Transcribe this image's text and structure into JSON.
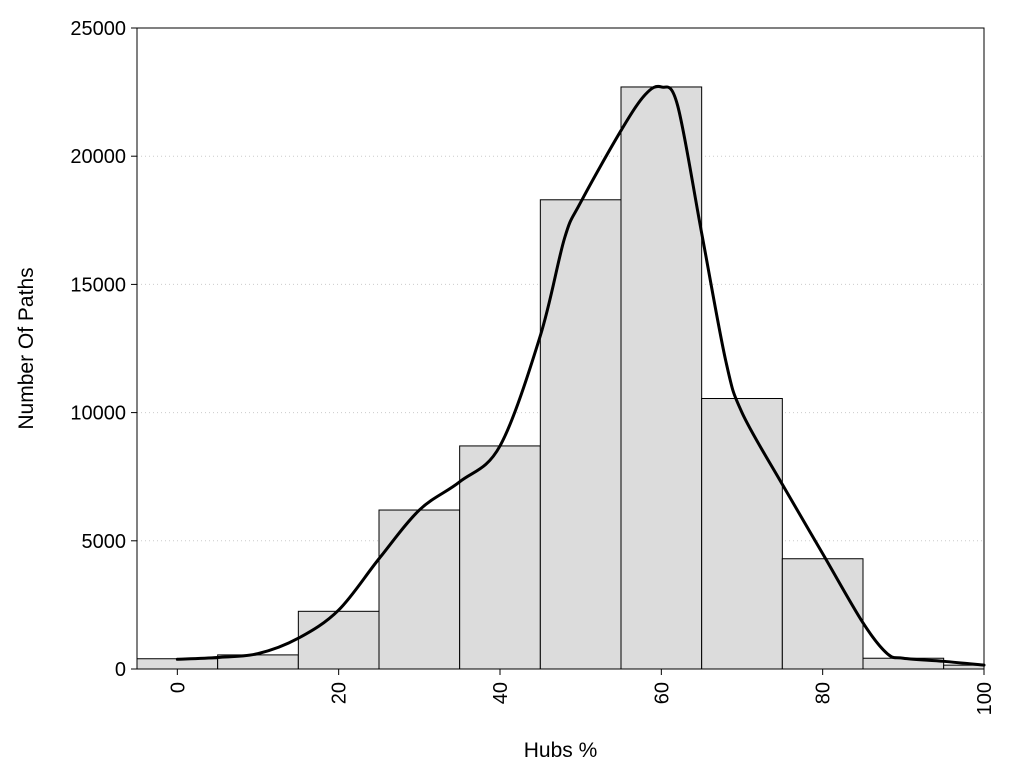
{
  "chart_data": {
    "type": "bar",
    "subtype": "histogram-with-density-curve",
    "title": "",
    "xlabel": "Hubs %",
    "ylabel": "Number Of Paths",
    "xlim": [
      -5,
      100
    ],
    "ylim": [
      0,
      25000
    ],
    "x_ticks": [
      0,
      20,
      40,
      60,
      80,
      100
    ],
    "x_tick_labels": [
      "0",
      "20",
      "40",
      "60",
      "80",
      "100"
    ],
    "y_ticks": [
      0,
      5000,
      10000,
      15000,
      20000,
      25000
    ],
    "y_tick_labels": [
      "0",
      "5000",
      "10000",
      "15000",
      "20000",
      "25000"
    ],
    "x_tick_rotation_deg": -90,
    "grid": "horizontal-dotted",
    "bin_width": 10,
    "bins": [
      {
        "center": 0,
        "value": 400
      },
      {
        "center": 10,
        "value": 550
      },
      {
        "center": 20,
        "value": 2250
      },
      {
        "center": 30,
        "value": 6200
      },
      {
        "center": 40,
        "value": 8700
      },
      {
        "center": 50,
        "value": 18300
      },
      {
        "center": 60,
        "value": 22700
      },
      {
        "center": 70,
        "value": 10550
      },
      {
        "center": 80,
        "value": 4300
      },
      {
        "center": 90,
        "value": 420
      },
      {
        "center": 100,
        "value": 150
      }
    ],
    "curve": {
      "x": [
        0,
        5,
        10,
        15,
        20,
        25,
        30,
        35,
        40,
        45,
        48,
        50,
        55,
        58,
        60,
        62,
        65,
        68,
        70,
        75,
        80,
        85,
        88,
        90,
        95,
        100
      ],
      "y": [
        380,
        450,
        600,
        1200,
        2300,
        4300,
        6200,
        7300,
        8700,
        13000,
        16800,
        18200,
        21000,
        22400,
        22700,
        22000,
        17000,
        12000,
        10000,
        7200,
        4500,
        1800,
        600,
        420,
        300,
        150
      ]
    },
    "colors": {
      "bar_fill": "#dcdcdc",
      "bar_stroke": "#000000",
      "curve": "#000000",
      "grid": "#cccccc"
    }
  }
}
